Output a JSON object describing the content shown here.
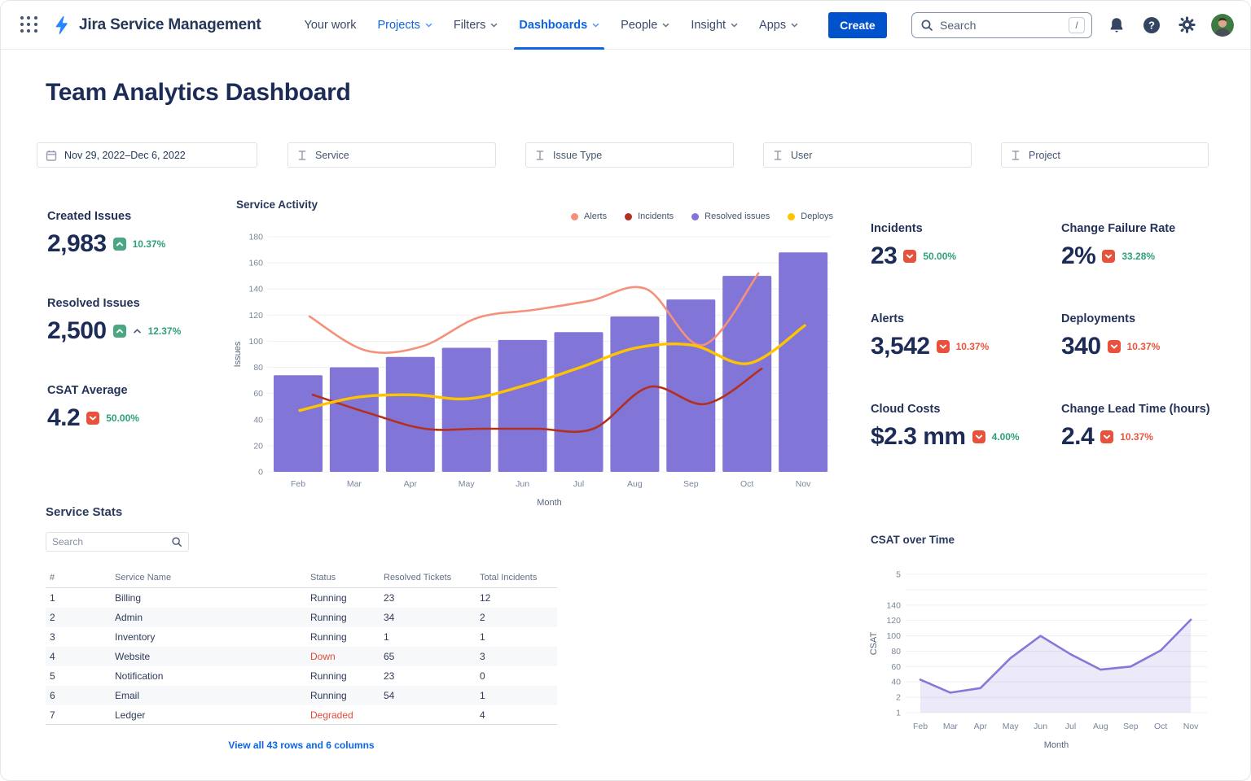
{
  "nav": {
    "product": "Jira Service Management",
    "items": [
      {
        "label": "Your work",
        "style": "dark",
        "chevron": false
      },
      {
        "label": "Projects",
        "style": "blue",
        "chevron": true
      },
      {
        "label": "Filters",
        "style": "dark",
        "chevron": true
      },
      {
        "label": "Dashboards",
        "style": "active",
        "chevron": true
      },
      {
        "label": "People",
        "style": "dark",
        "chevron": true
      },
      {
        "label": "Insight",
        "style": "dark",
        "chevron": true
      },
      {
        "label": "Apps",
        "style": "dark",
        "chevron": true
      }
    ],
    "create_label": "Create",
    "search_placeholder": "Search",
    "search_shortcut": "/"
  },
  "page": {
    "title": "Team Analytics Dashboard"
  },
  "filters": [
    {
      "label": "Nov 29, 2022–Dec 6, 2022",
      "icon": "calendar",
      "dark": true
    },
    {
      "label": "Service",
      "icon": "filter",
      "dark": false
    },
    {
      "label": "Issue Type",
      "icon": "filter",
      "dark": false
    },
    {
      "label": "User",
      "icon": "filter",
      "dark": false
    },
    {
      "label": "Project",
      "icon": "filter",
      "dark": false
    }
  ],
  "kpis_left": [
    {
      "label": "Created Issues",
      "value": "2,983",
      "trend": "up",
      "change": "10.37%",
      "tone": "pos",
      "caret": false
    },
    {
      "label": "Resolved Issues",
      "value": "2,500",
      "trend": "up",
      "change": "12.37%",
      "tone": "pos",
      "caret": true
    },
    {
      "label": "CSAT Average",
      "value": "4.2",
      "trend": "down",
      "change": "50.00%",
      "tone": "pos",
      "caret": false
    }
  ],
  "kpis_right": [
    {
      "label": "Incidents",
      "value": "23",
      "trend": "down",
      "change": "50.00%",
      "tone": "pos",
      "caret": false
    },
    {
      "label": "Change Failure Rate",
      "value": "2%",
      "trend": "down",
      "change": "33.28%",
      "tone": "pos",
      "caret": false
    },
    {
      "label": "Alerts",
      "value": "3,542",
      "trend": "down",
      "change": "10.37%",
      "tone": "neg",
      "caret": false
    },
    {
      "label": "Deployments",
      "value": "340",
      "trend": "down",
      "change": "10.37%",
      "tone": "neg",
      "caret": false
    },
    {
      "label": "Cloud Costs",
      "value": "$2.3 mm",
      "trend": "down",
      "change": "4.00%",
      "tone": "pos",
      "caret": false
    },
    {
      "label": "Change Lead Time (hours)",
      "value": "2.4",
      "trend": "down",
      "change": "10.37%",
      "tone": "neg",
      "caret": false
    }
  ],
  "service_stats": {
    "title": "Service Stats",
    "search_placeholder": "Search",
    "columns": [
      "#",
      "Service Name",
      "Status",
      "Resolved Tickets",
      "Total Incidents"
    ],
    "rows": [
      [
        "1",
        "Billing",
        "Running",
        "23",
        "12"
      ],
      [
        "2",
        "Admin",
        "Running",
        "34",
        "2"
      ],
      [
        "3",
        "Inventory",
        "Running",
        "1",
        "1"
      ],
      [
        "4",
        "Website",
        "Down",
        "65",
        "3"
      ],
      [
        "5",
        "Notification",
        "Running",
        "23",
        "0"
      ],
      [
        "6",
        "Email",
        "Running",
        "54",
        "1"
      ],
      [
        "7",
        "Ledger",
        "Degraded",
        "",
        "4"
      ]
    ],
    "footer_link": "View all 43 rows and 6 columns"
  },
  "chart_data": [
    {
      "type": "bar",
      "title": "Service Activity",
      "xlabel": "Month",
      "ylabel": "Issues",
      "categories": [
        "Feb",
        "Mar",
        "Apr",
        "May",
        "Jun",
        "Jul",
        "Aug",
        "Sep",
        "Oct",
        "Nov"
      ],
      "ylim": [
        0,
        180
      ],
      "ytick_step": 20,
      "grid": true,
      "legend_position": "top-right",
      "series": [
        {
          "name": "Resolved issues",
          "type": "bar",
          "color": "#8176D7",
          "values": [
            74,
            80,
            88,
            95,
            101,
            107,
            119,
            132,
            150,
            168
          ]
        },
        {
          "name": "Alerts",
          "type": "line",
          "color": "#F5917A",
          "values": [
            119,
            93,
            96,
            118,
            124,
            131,
            140,
            97,
            152,
            null
          ]
        },
        {
          "name": "Incidents",
          "type": "line",
          "color": "#B2301F",
          "values": [
            59,
            45,
            33,
            33,
            33,
            33,
            65,
            52,
            79,
            null
          ]
        },
        {
          "name": "Deploys",
          "type": "line",
          "color": "#FFC400",
          "values": [
            47,
            57,
            59,
            56,
            66,
            80,
            95,
            97,
            83,
            112
          ]
        }
      ]
    },
    {
      "type": "area",
      "title": "CSAT over Time",
      "xlabel": "Month",
      "ylabel": "CSAT",
      "categories": [
        "Feb",
        "Mar",
        "Apr",
        "May",
        "Jun",
        "Jul",
        "Aug",
        "Sep",
        "Oct",
        "Nov"
      ],
      "values": [
        43,
        26,
        32,
        71,
        100,
        76,
        56,
        60,
        81,
        121
      ],
      "ylim": [
        0,
        180
      ],
      "ytick_labels_top_to_bottom": [
        "5",
        "",
        "140",
        "120",
        "100",
        "80",
        "60",
        "40",
        "2",
        "1"
      ],
      "grid": true,
      "color": "#8777D9",
      "fill": "rgba(135,119,217,0.16)"
    }
  ]
}
